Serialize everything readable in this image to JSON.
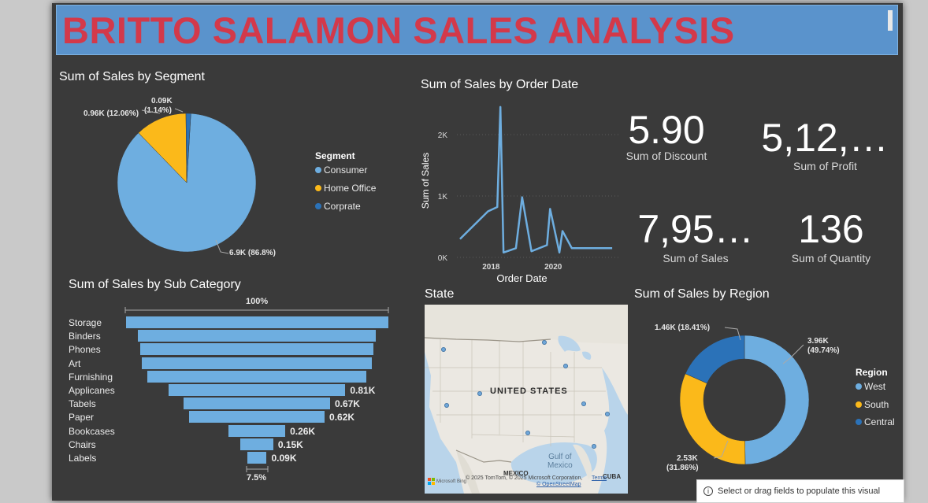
{
  "title": "BRITTO SALAMON SALES ANALYSIS",
  "colors": {
    "blue_light": "#6eaee0",
    "yellow": "#fbb91a",
    "blue_dark": "#2b72b8",
    "background": "#3a3a3a",
    "title_bar": "#5a93cc",
    "title_text": "#d3394a"
  },
  "segment_chart": {
    "title": "Sum of Sales by Segment",
    "legend_title": "Segment",
    "legend": [
      "Consumer",
      "Home Office",
      "Corprate"
    ],
    "labels": {
      "consumer": "6.9K (86.8%)",
      "home_office": "0.96K (12.06%)",
      "corprate_value": "0.09K",
      "corprate_pct": "(1.14%)"
    }
  },
  "line_chart": {
    "title": "Sum of Sales by Order Date",
    "ylabel": "Sum of Sales",
    "xlabel": "Order Date",
    "y_ticks": [
      "2K",
      "1K",
      "0K"
    ],
    "x_ticks": [
      "2018",
      "2020"
    ]
  },
  "kpis": {
    "discount": {
      "value": "5.90",
      "label": "Sum of Discount"
    },
    "profit": {
      "value": "5,12,…",
      "label": "Sum of Profit"
    },
    "sales": {
      "value": "7,95…",
      "label": "Sum of Sales"
    },
    "quantity": {
      "value": "136",
      "label": "Sum of Quantity"
    }
  },
  "funnel": {
    "title": "Sum of Sales by Sub Category",
    "top_pct": "100%",
    "bottom_pct": "7.5%",
    "items": [
      {
        "label": "Storage",
        "value": ""
      },
      {
        "label": "Binders",
        "value": ""
      },
      {
        "label": "Phones",
        "value": ""
      },
      {
        "label": "Art",
        "value": ""
      },
      {
        "label": "Furnishing",
        "value": ""
      },
      {
        "label": "Applicanes",
        "value": "0.81K"
      },
      {
        "label": "Tabels",
        "value": "0.67K"
      },
      {
        "label": "Paper",
        "value": "0.62K"
      },
      {
        "label": "Bookcases",
        "value": "0.26K"
      },
      {
        "label": "Chairs",
        "value": "0.15K"
      },
      {
        "label": "Labels",
        "value": "0.09K"
      }
    ]
  },
  "map": {
    "title": "State",
    "country_label": "UNITED STATES",
    "mexico_label": "MEXICO",
    "gulf_label": "Gulf of",
    "gulf_label2": "Mexico",
    "cuba_label": "CUBA",
    "attribution": "© 2025 TomTom, © 2025 Microsoft Corporation,",
    "terms": "Terms",
    "osm": "© OpenStreetMap",
    "bing": "Microsoft Bing"
  },
  "region_chart": {
    "title": "Sum of Sales by Region",
    "legend_title": "Region",
    "legend": [
      "West",
      "South",
      "Central"
    ],
    "labels": {
      "west_value": "3.96K",
      "west_pct": "(49.74%)",
      "south_value": "2.53K",
      "south_pct": "(31.86%)",
      "central": "1.46K (18.41%)"
    }
  },
  "tooltip": "Select or drag fields to populate this visual",
  "chart_data": [
    {
      "type": "pie",
      "title": "Sum of Sales by Segment",
      "categories": [
        "Consumer",
        "Home Office",
        "Corprate"
      ],
      "values": [
        6.9,
        0.96,
        0.09
      ],
      "percents": [
        86.8,
        12.06,
        1.14
      ],
      "legend": "right"
    },
    {
      "type": "line",
      "title": "Sum of Sales by Order Date",
      "xlabel": "Order Date",
      "ylabel": "Sum of Sales",
      "x": [
        2017.0,
        2017.4,
        2017.9,
        2018.2,
        2018.3,
        2018.4,
        2018.8,
        2019.0,
        2019.3,
        2019.8,
        2019.9,
        2020.2,
        2020.3,
        2020.6,
        2021.0,
        2021.5,
        2021.9
      ],
      "y": [
        300,
        500,
        750,
        820,
        2450,
        80,
        150,
        980,
        100,
        200,
        790,
        80,
        430,
        150,
        150,
        150,
        150
      ],
      "ylim": [
        0,
        2500
      ],
      "xlim": [
        2016.9,
        2022.1
      ],
      "grid": true
    },
    {
      "type": "bar",
      "title": "Sum of Sales by Sub Category",
      "categories": [
        "Storage",
        "Binders",
        "Phones",
        "Art",
        "Furnishing",
        "Applicanes",
        "Tabels",
        "Paper",
        "Bookcases",
        "Chairs",
        "Labels"
      ],
      "values": [
        1.2,
        1.09,
        1.07,
        1.05,
        1.0,
        0.81,
        0.67,
        0.62,
        0.26,
        0.15,
        0.09
      ]
    },
    {
      "type": "pie",
      "title": "Sum of Sales by Region",
      "categories": [
        "West",
        "South",
        "Central"
      ],
      "values": [
        3.96,
        2.53,
        1.46
      ],
      "percents": [
        49.74,
        31.86,
        18.41
      ],
      "legend": "right"
    }
  ]
}
